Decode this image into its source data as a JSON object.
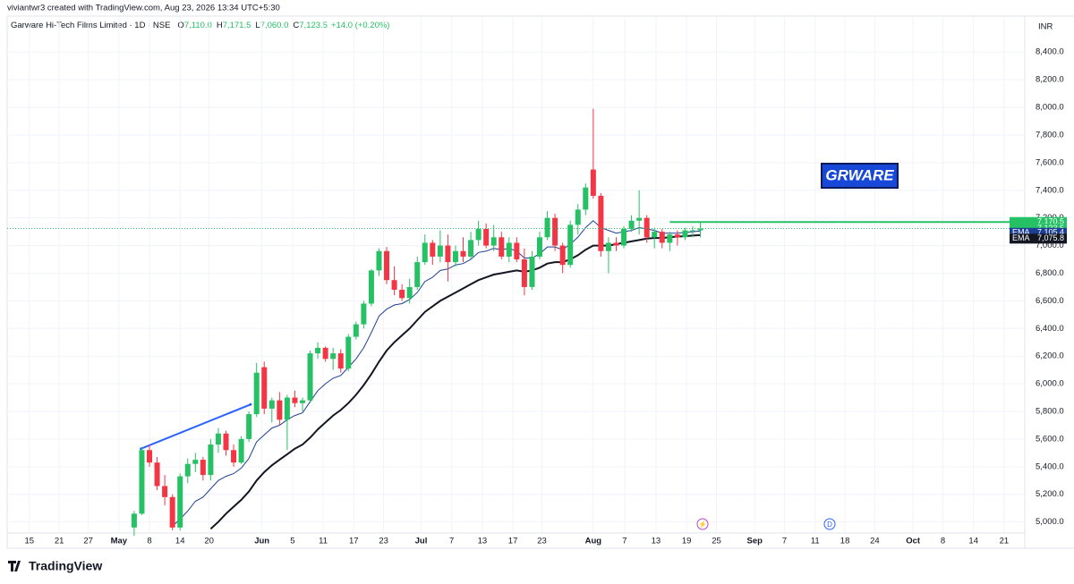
{
  "chart_data": {
    "type": "candlestick",
    "credit": "viviantwr3 created with TradingView.com, Aug 23, 2026 13:34 UTC+5:30",
    "title": "Garware Hi-Tech Films Limited · 1D · NSE",
    "ohlc": [
      {
        "key": "O",
        "text": "7,110.0"
      },
      {
        "key": "H",
        "text": "7,171.5"
      },
      {
        "key": "L",
        "text": "7,060.0"
      },
      {
        "key": "C",
        "text": "7,123.5"
      }
    ],
    "change": "+14.0 (+0.20%)",
    "currency": "INR",
    "brand": "TradingView",
    "symbol_label": "GRWARE",
    "up_color": "#26c164",
    "down_color": "#f23645",
    "open": [
      4960,
      5060,
      5520,
      5430,
      5260,
      5180,
      4960,
      5330,
      5420,
      5450,
      5340,
      5560,
      5640,
      5520,
      5430,
      5600,
      5780,
      6120,
      5820,
      5880,
      5740,
      5900,
      5860,
      5880,
      6220,
      6260,
      6180,
      6220,
      6110,
      6340,
      6430,
      6580,
      6820,
      6960,
      6750,
      6680,
      6620,
      6700,
      6880,
      7020,
      6920,
      7000,
      6880,
      6960,
      6920,
      7040,
      7120,
      7000,
      7060,
      6920,
      7020,
      6900,
      6700,
      6920,
      7060,
      7200,
      7000,
      6860,
      7150,
      7260,
      7550,
      7360,
      6960,
      7020,
      7000,
      7120,
      7180,
      7200,
      7060,
      7100,
      7020,
      7080,
      7060,
      7110,
      7110
    ],
    "high": [
      5080,
      5540,
      5560,
      5470,
      5340,
      5200,
      5350,
      5460,
      5500,
      5470,
      5600,
      5680,
      5660,
      5560,
      5620,
      5800,
      6150,
      6160,
      5900,
      5940,
      5920,
      5950,
      5900,
      6240,
      6300,
      6270,
      6260,
      6250,
      6360,
      6450,
      6600,
      6830,
      6980,
      6990,
      6850,
      6720,
      6760,
      6920,
      7080,
      7040,
      7110,
      7080,
      7000,
      7060,
      7100,
      7180,
      7160,
      7150,
      7100,
      7060,
      7060,
      6980,
      6960,
      7100,
      7250,
      7230,
      7020,
      7180,
      7300,
      7450,
      7990,
      7380,
      7060,
      7060,
      7140,
      7220,
      7400,
      7220,
      7130,
      7120,
      7100,
      7110,
      7130,
      7140,
      7171.5
    ],
    "low": [
      4900,
      5050,
      5400,
      5230,
      5120,
      4940,
      4940,
      5280,
      5360,
      5300,
      5300,
      5500,
      5480,
      5400,
      5420,
      5580,
      5760,
      5780,
      5720,
      5700,
      5520,
      5830,
      5800,
      5860,
      6180,
      6160,
      6100,
      6080,
      6090,
      6320,
      6400,
      6560,
      6780,
      6720,
      6640,
      6600,
      6580,
      6680,
      6860,
      6860,
      6880,
      6740,
      6850,
      6880,
      6900,
      7000,
      6980,
      6960,
      6900,
      6880,
      6880,
      6640,
      6680,
      6900,
      7040,
      6960,
      6800,
      6840,
      7080,
      7220,
      7340,
      6920,
      6800,
      6960,
      6980,
      7100,
      7080,
      7020,
      6980,
      6980,
      6960,
      7000,
      7040,
      7060,
      7060
    ],
    "close": [
      5060,
      5520,
      5430,
      5260,
      5180,
      4960,
      5330,
      5420,
      5450,
      5340,
      5560,
      5640,
      5520,
      5430,
      5600,
      5780,
      6080,
      5820,
      5880,
      5740,
      5900,
      5860,
      5880,
      6220,
      6260,
      6180,
      6220,
      6110,
      6340,
      6430,
      6580,
      6820,
      6960,
      6750,
      6680,
      6620,
      6700,
      6880,
      7020,
      6920,
      7000,
      6880,
      6960,
      6920,
      7040,
      7120,
      7000,
      7060,
      6920,
      7020,
      6900,
      6700,
      6920,
      7060,
      7200,
      7000,
      6860,
      7150,
      7260,
      7420,
      7360,
      6960,
      7020,
      7000,
      7120,
      7180,
      7200,
      7060,
      7100,
      7020,
      7080,
      7060,
      7110,
      7110,
      7123.5
    ],
    "last_price_label": "7,123.5",
    "series": [
      {
        "name": "EMA",
        "color": "#1c3f94",
        "last_label": "7,105.4",
        "values": [
          null,
          null,
          null,
          null,
          null,
          4970,
          5020,
          5080,
          5150,
          5180,
          5240,
          5300,
          5330,
          5350,
          5390,
          5460,
          5580,
          5630,
          5680,
          5700,
          5740,
          5770,
          5790,
          5870,
          5950,
          6000,
          6040,
          6060,
          6120,
          6180,
          6260,
          6370,
          6490,
          6540,
          6570,
          6580,
          6610,
          6660,
          6740,
          6770,
          6820,
          6830,
          6860,
          6870,
          6900,
          6950,
          6960,
          6980,
          6970,
          6980,
          6960,
          6910,
          6910,
          6940,
          6990,
          6990,
          6970,
          7010,
          7060,
          7130,
          7180,
          7130,
          7110,
          7090,
          7100,
          7110,
          7130,
          7120,
          7110,
          7090,
          7090,
          7090,
          7095,
          7100,
          7105.4
        ]
      },
      {
        "name": "EMA",
        "color": "#131722",
        "last_label": "7,075.8",
        "values": [
          null,
          null,
          null,
          null,
          null,
          null,
          null,
          null,
          null,
          null,
          4950,
          5000,
          5060,
          5110,
          5160,
          5220,
          5300,
          5360,
          5410,
          5450,
          5490,
          5530,
          5560,
          5610,
          5670,
          5720,
          5770,
          5810,
          5860,
          5920,
          5990,
          6070,
          6160,
          6240,
          6300,
          6350,
          6400,
          6460,
          6520,
          6560,
          6600,
          6630,
          6660,
          6690,
          6720,
          6750,
          6770,
          6790,
          6800,
          6810,
          6820,
          6810,
          6820,
          6840,
          6870,
          6880,
          6880,
          6900,
          6930,
          6970,
          7000,
          7000,
          7000,
          7010,
          7020,
          7030,
          7040,
          7050,
          7055,
          7055,
          7060,
          7065,
          7068,
          7072,
          7075.8
        ]
      }
    ],
    "trendline": {
      "x": [
        0.9,
        15.2
      ],
      "y": [
        5530,
        5850
      ],
      "color": "#2962ff"
    },
    "hline": {
      "value": 7170.5,
      "label": "7,170.5",
      "x_start": 70,
      "color": "#26c164"
    },
    "xlim": [
      -16.6,
      116.4
    ],
    "xticks": [
      {
        "value": -13.7,
        "label": "15"
      },
      {
        "value": -9.8,
        "label": "21"
      },
      {
        "value": -6.0,
        "label": "27"
      },
      {
        "value": -2.0,
        "label": "May"
      },
      {
        "value": 2.0,
        "label": "8"
      },
      {
        "value": 6.0,
        "label": "14"
      },
      {
        "value": 9.8,
        "label": "20"
      },
      {
        "value": 16.7,
        "label": "Jun"
      },
      {
        "value": 20.7,
        "label": "5"
      },
      {
        "value": 24.7,
        "label": "11"
      },
      {
        "value": 28.7,
        "label": "17"
      },
      {
        "value": 32.6,
        "label": "23"
      },
      {
        "value": 37.5,
        "label": "Jul"
      },
      {
        "value": 41.5,
        "label": "7"
      },
      {
        "value": 45.5,
        "label": "13"
      },
      {
        "value": 49.5,
        "label": "17"
      },
      {
        "value": 53.3,
        "label": "23"
      },
      {
        "value": 60.0,
        "label": "Aug"
      },
      {
        "value": 64.1,
        "label": "7"
      },
      {
        "value": 68.2,
        "label": "13"
      },
      {
        "value": 72.2,
        "label": "19"
      },
      {
        "value": 76.1,
        "label": "25"
      },
      {
        "value": 81.1,
        "label": "Sep"
      },
      {
        "value": 85.0,
        "label": "7"
      },
      {
        "value": 89.0,
        "label": "11"
      },
      {
        "value": 92.9,
        "label": "18"
      },
      {
        "value": 96.8,
        "label": "24"
      },
      {
        "value": 101.8,
        "label": "Oct"
      },
      {
        "value": 105.7,
        "label": "8"
      },
      {
        "value": 109.7,
        "label": "14"
      },
      {
        "value": 113.7,
        "label": "21"
      }
    ],
    "ylim": [
      4920,
      8725
    ],
    "yticks": [
      {
        "value": 5000,
        "label": "5,000.0"
      },
      {
        "value": 5200,
        "label": "5,200.0"
      },
      {
        "value": 5400,
        "label": "5,400.0"
      },
      {
        "value": 5600,
        "label": "5,600.0"
      },
      {
        "value": 5800,
        "label": "5,800.0"
      },
      {
        "value": 6000,
        "label": "6,000.0"
      },
      {
        "value": 6200,
        "label": "6,200.0"
      },
      {
        "value": 6400,
        "label": "6,400.0"
      },
      {
        "value": 6600,
        "label": "6,600.0"
      },
      {
        "value": 6800,
        "label": "6,800.0"
      },
      {
        "value": 7000,
        "label": "7,000.0"
      },
      {
        "value": 7200,
        "label": "7,200.0"
      },
      {
        "value": 7400,
        "label": "7,400.0"
      },
      {
        "value": 7600,
        "label": "7,600.0"
      },
      {
        "value": 7800,
        "label": "7,800.0"
      },
      {
        "value": 8000,
        "label": "8,000.0"
      },
      {
        "value": 8200,
        "label": "8,200.0"
      },
      {
        "value": 8400,
        "label": "8,400.0"
      }
    ],
    "grid": true
  }
}
